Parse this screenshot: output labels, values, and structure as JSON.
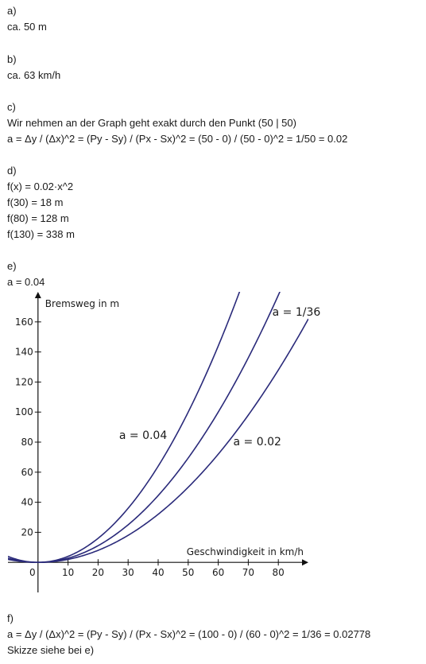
{
  "sections": {
    "a": {
      "label": "a)",
      "answer": "ca. 50 m"
    },
    "b": {
      "label": "b)",
      "answer": "ca. 63 km/h"
    },
    "c": {
      "label": "c)",
      "line1": "Wir nehmen an der Graph geht exakt durch den Punkt (50 | 50)",
      "line2": "a = Δy / (Δx)^2 = (Py - Sy) / (Px - Sx)^2 = (50 - 0) / (50 - 0)^2 = 1/50 = 0.02"
    },
    "d": {
      "label": "d)",
      "lines": [
        "f(x) = 0.02·x^2",
        "f(30) = 18 m",
        "f(80) = 128 m",
        "f(130) = 338 m"
      ]
    },
    "e": {
      "label": "e)",
      "answer": "a = 0.04"
    },
    "f": {
      "label": "f)",
      "line1": "a = Δy / (Δx)^2 = (Py - Sy) / (Px - Sx)^2 = (100 - 0) / (60 - 0)^2 = 1/36 = 0.02778",
      "line2": "Skizze siehe bei e)"
    }
  },
  "chart_data": {
    "type": "line",
    "xlabel": "Geschwindigkeit in km/h",
    "ylabel": "Bremsweg in m",
    "xlim": [
      -10,
      90
    ],
    "ylim": [
      -20,
      180
    ],
    "x_ticks": [
      0,
      10,
      20,
      30,
      40,
      50,
      60,
      70,
      80
    ],
    "y_ticks": [
      20,
      40,
      60,
      80,
      100,
      120,
      140,
      160
    ],
    "grid": false,
    "series": [
      {
        "name": "a = 0.04",
        "a": 0.04,
        "points": [
          [
            0,
            0
          ],
          [
            20,
            16
          ],
          [
            40,
            64
          ],
          [
            50,
            100
          ],
          [
            60,
            144
          ]
        ]
      },
      {
        "name": "a = 1/36",
        "a": 0.02778,
        "points": [
          [
            0,
            0
          ],
          [
            30,
            25
          ],
          [
            60,
            100
          ],
          [
            75,
            156.25
          ]
        ]
      },
      {
        "name": "a = 0.02",
        "a": 0.02,
        "points": [
          [
            0,
            0
          ],
          [
            30,
            18
          ],
          [
            50,
            50
          ],
          [
            80,
            128
          ],
          [
            90,
            162
          ]
        ]
      }
    ],
    "curve_color": "#2a2a7a"
  }
}
